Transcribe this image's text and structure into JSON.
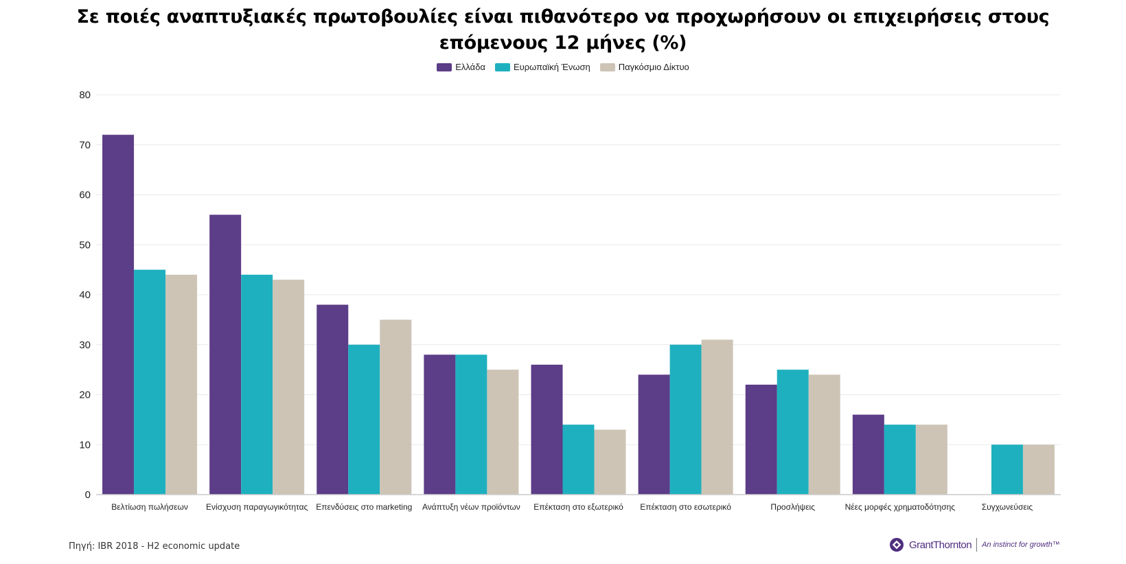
{
  "title": "Σε ποιές αναπτυξιακές πρωτοβουλίες είναι πιθανότερο να προχωρήσουν οι επιχειρήσεις στους επόμενους 12 μήνες (%)",
  "source": "Πηγή: IBR 2018 - H2 economic update",
  "brand": {
    "name": "GrantThornton",
    "tagline": "An instinct for growth™",
    "logo_icon": "grant-thornton-logo"
  },
  "colors": {
    "Ελλάδα": "#5c3d87",
    "Ευρωπαϊκή Ένωση": "#1fb0bf",
    "Παγκόσμιο Δίκτυο": "#cdc4b6",
    "gridline": "#e9e9e9",
    "axis": "#cccccc"
  },
  "chart_data": {
    "type": "bar",
    "title": "Σε ποιές αναπτυξιακές πρωτοβουλίες είναι πιθανότερο να προχωρήσουν οι επιχειρήσεις στους επόμενους 12 μήνες (%)",
    "categories": [
      "Βελτίωση πωλήσεων",
      "Ενίσχυση παραγωγικότητας",
      "Επενδύσεις στο marketing",
      "Ανάπτυξη νέων προϊόντων",
      "Επέκταση στο εξωτερικό",
      "Επέκταση στο εσωτερικό",
      "Προσλήψεις",
      "Νέες μορφές χρηματοδότησης",
      "Συγχωνεύσεις"
    ],
    "series": [
      {
        "name": "Ελλάδα",
        "values": [
          72,
          56,
          38,
          28,
          26,
          24,
          22,
          16,
          0
        ]
      },
      {
        "name": "Ευρωπαϊκή Ένωση",
        "values": [
          45,
          44,
          30,
          28,
          14,
          30,
          25,
          14,
          10
        ]
      },
      {
        "name": "Παγκόσμιο Δίκτυο",
        "values": [
          44,
          43,
          35,
          25,
          13,
          31,
          24,
          14,
          10
        ]
      }
    ],
    "yticks": [
      0,
      10,
      20,
      30,
      40,
      50,
      60,
      70,
      80
    ],
    "ylim": [
      0,
      80
    ],
    "xlabel": "",
    "ylabel": "",
    "grid": true,
    "legend_position": "top"
  }
}
